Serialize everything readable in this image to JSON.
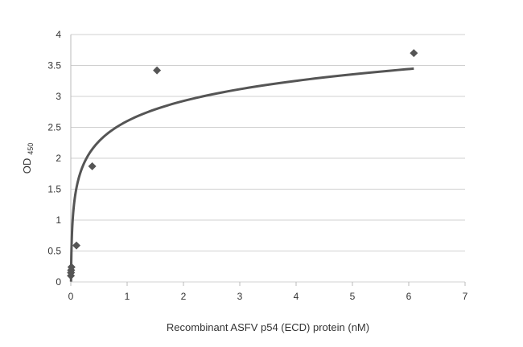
{
  "chart_data": {
    "type": "scatter",
    "title": "",
    "xlabel": "Recombinant ASFV p54 (ECD) protein (nM)",
    "ylabel": "OD",
    "ylabel_subscript": "450",
    "xlim": [
      0,
      7
    ],
    "ylim": [
      0,
      4
    ],
    "xticks": [
      "0",
      "1",
      "2",
      "3",
      "4",
      "5",
      "6",
      "7"
    ],
    "yticks": [
      "0",
      "0.5",
      "1",
      "1.5",
      "2",
      "2.5",
      "3",
      "3.5",
      "4"
    ],
    "grid": "horizontal",
    "marker": "diamond",
    "series": [
      {
        "x": [
          0.0015,
          0.003,
          0.006,
          0.012,
          0.1,
          0.38,
          1.53,
          6.09
        ],
        "y": [
          0.1,
          0.15,
          0.19,
          0.24,
          0.59,
          1.87,
          3.42,
          3.7
        ]
      }
    ],
    "trendline": {
      "type": "logarithmic",
      "a": 0.47,
      "b": 2.6,
      "x_range": [
        0.004,
        6.09
      ]
    },
    "colors": {
      "marker": "#555555",
      "trendline": "#555555",
      "grid": "#d0d0d0"
    }
  }
}
